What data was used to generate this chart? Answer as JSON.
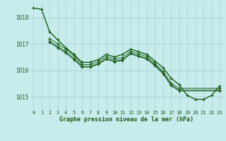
{
  "title": "Graphe pression niveau de la mer (hPa)",
  "background_color": "#c8ecec",
  "grid_color": "#a8d4d4",
  "line_color": "#1a5c1a",
  "text_color": "#1a5c1a",
  "xlim": [
    -0.5,
    23.5
  ],
  "ylim": [
    1014.5,
    1018.6
  ],
  "yticks": [
    1015,
    1016,
    1017,
    1018
  ],
  "xtick_labels": [
    "0",
    "1",
    "2",
    "3",
    "4",
    "5",
    "6",
    "7",
    "8",
    "9",
    "10",
    "11",
    "12",
    "13",
    "14",
    "15",
    "16",
    "17",
    "18",
    "19",
    "20",
    "21",
    "22",
    "23"
  ],
  "series": [
    {
      "x": [
        0,
        1,
        2,
        3,
        4,
        5,
        6,
        7,
        8,
        9,
        10,
        11,
        12,
        13,
        14,
        15,
        16,
        17,
        18,
        19,
        20,
        21,
        22,
        23
      ],
      "y": [
        1018.35,
        1018.3,
        1017.45,
        1017.15,
        1016.85,
        1016.6,
        1016.3,
        1016.3,
        1016.4,
        1016.6,
        1016.5,
        1016.6,
        1016.8,
        1016.7,
        1016.6,
        1016.35,
        1016.1,
        1015.7,
        1015.45,
        1015.05,
        1014.9,
        1014.9,
        1015.05,
        1015.4
      ]
    },
    {
      "x": [
        2,
        3,
        4,
        5,
        6,
        7,
        8,
        9,
        10,
        11,
        12,
        13,
        14,
        15,
        16,
        17,
        18,
        23
      ],
      "y": [
        1017.2,
        1017.0,
        1016.8,
        1016.55,
        1016.22,
        1016.22,
        1016.32,
        1016.52,
        1016.42,
        1016.48,
        1016.72,
        1016.62,
        1016.52,
        1016.26,
        1015.96,
        1015.52,
        1015.32,
        1015.32
      ]
    },
    {
      "x": [
        2,
        3,
        4,
        5,
        6,
        7,
        8,
        9,
        10,
        11,
        12,
        13,
        14,
        15,
        16,
        17,
        18,
        23
      ],
      "y": [
        1017.1,
        1016.9,
        1016.7,
        1016.45,
        1016.15,
        1016.15,
        1016.25,
        1016.45,
        1016.35,
        1016.4,
        1016.65,
        1016.55,
        1016.45,
        1016.2,
        1015.9,
        1015.45,
        1015.25,
        1015.25
      ]
    },
    {
      "x": [
        2,
        3,
        4,
        5,
        6,
        7,
        8,
        9,
        10,
        11,
        12,
        13,
        14,
        15,
        16,
        17,
        18,
        23
      ],
      "y": [
        1017.05,
        1016.85,
        1016.65,
        1016.4,
        1016.12,
        1016.12,
        1016.22,
        1016.42,
        1016.32,
        1016.37,
        1016.62,
        1016.52,
        1016.42,
        1016.17,
        1015.87,
        1015.42,
        1015.22,
        1015.22
      ]
    }
  ]
}
